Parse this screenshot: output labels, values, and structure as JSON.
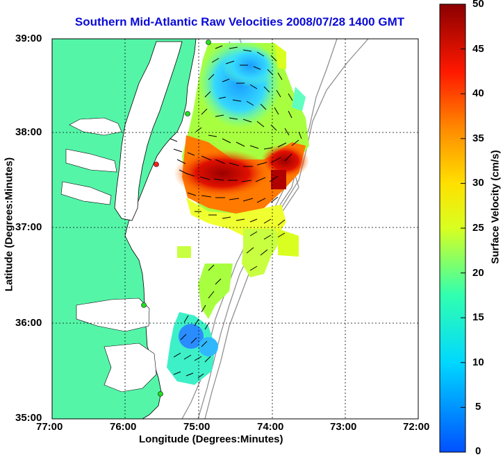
{
  "title": "Southern Mid-Atlantic Raw Velocities 2008/07/28 1400 GMT",
  "axes": {
    "xlabel": "Longitude (Degrees:Minutes)",
    "ylabel": "Latitude (Degrees:Minutes)",
    "xticks": [
      "77:00",
      "76:00",
      "75:00",
      "74:00",
      "73:00",
      "72:00"
    ],
    "yticks": [
      "39:00",
      "38:00",
      "37:00",
      "36:00",
      "35:00"
    ],
    "xlim": [
      -77,
      -72
    ],
    "ylim": [
      35,
      39
    ],
    "grid": "dotted"
  },
  "colorbar": {
    "label": "Surface Velocity (cm/s)",
    "ticks": [
      "50",
      "45",
      "40",
      "35",
      "30",
      "25",
      "20",
      "15",
      "10",
      "5",
      "0"
    ],
    "range": [
      0,
      50
    ]
  },
  "colors": {
    "land": "#55f5a8",
    "title": "#0a0ad8",
    "coastline": "#000000",
    "bathymetry": "#909090"
  }
}
